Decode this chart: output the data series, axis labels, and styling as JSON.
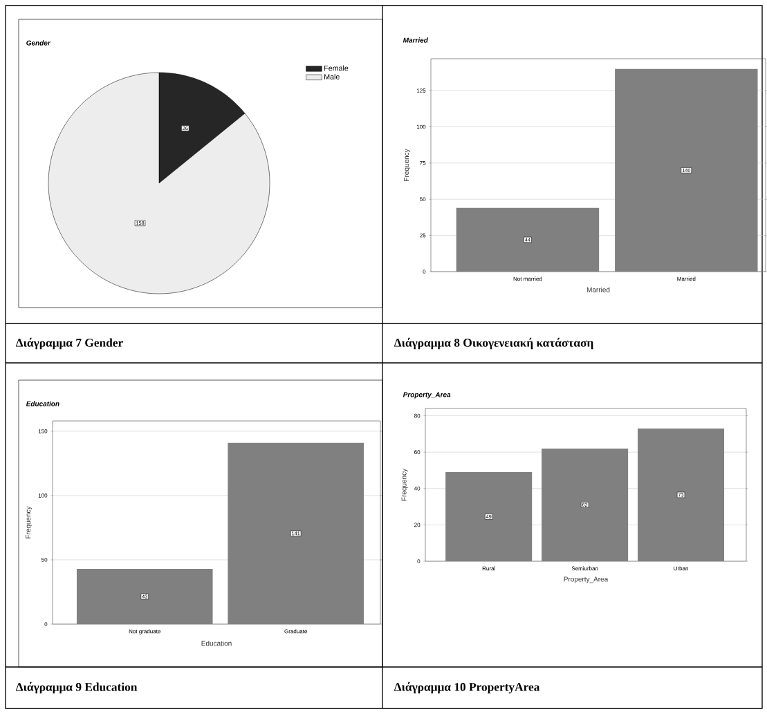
{
  "chart_data": [
    {
      "type": "pie",
      "title": "Gender",
      "categories": [
        "Female",
        "Male"
      ],
      "values": [
        26,
        158
      ],
      "colors": [
        "#262626",
        "#ededed"
      ],
      "data_labels": true,
      "legend": "top right",
      "annotations": [
        "Διάγραμμα  7 Gender"
      ]
    },
    {
      "type": "bar",
      "title": "Married",
      "categories": [
        "Not married",
        "Married"
      ],
      "values": [
        44,
        140
      ],
      "color": "#808080",
      "xlabel": "Married",
      "ylabel": "Frequency",
      "ylim": [
        0,
        147
      ],
      "yticks": [
        0,
        25,
        50,
        75,
        100,
        125
      ],
      "grid": "y",
      "data_labels": true,
      "annotations": [
        "Διάγραμμα  8  Οικογενειακή κατάσταση"
      ]
    },
    {
      "type": "bar",
      "title": "Education",
      "categories": [
        "Not graduate",
        "Graduate"
      ],
      "values": [
        43,
        141
      ],
      "color": "#808080",
      "xlabel": "Education",
      "ylabel": "Frequency",
      "ylim": [
        0,
        158
      ],
      "yticks": [
        0,
        50,
        100,
        150
      ],
      "grid": "y",
      "data_labels": true,
      "annotations": [
        "Διάγραμμα  9  Education"
      ]
    },
    {
      "type": "bar",
      "title": "Property_Area",
      "categories": [
        "Rural",
        "Semiurban",
        "Urban"
      ],
      "values": [
        49,
        62,
        73
      ],
      "color": "#808080",
      "xlabel": "Property_Area",
      "ylabel": "Frequency",
      "ylim": [
        0,
        84
      ],
      "yticks": [
        0,
        20,
        40,
        60,
        80
      ],
      "grid": "y",
      "data_labels": true,
      "annotations": [
        "Διάγραμμα 10 PropertyArea"
      ]
    }
  ]
}
